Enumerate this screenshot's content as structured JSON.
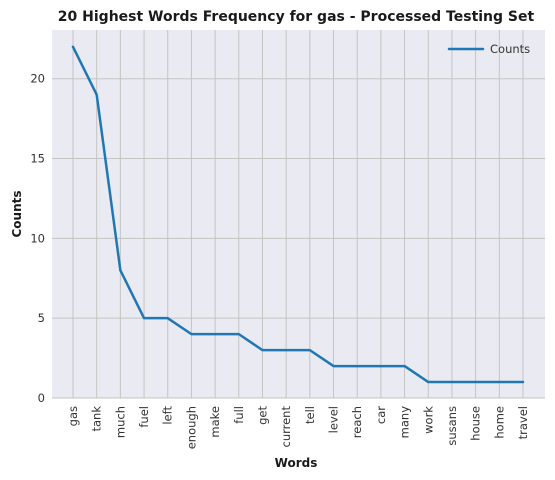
{
  "chart_data": {
    "type": "line",
    "title": "20 Highest Words Frequency for gas - Processed Testing Set",
    "xlabel": "Words",
    "ylabel": "Counts",
    "categories": [
      "gas",
      "tank",
      "much",
      "fuel",
      "left",
      "enough",
      "make",
      "full",
      "get",
      "current",
      "tell",
      "level",
      "reach",
      "car",
      "many",
      "work",
      "susans",
      "house",
      "home",
      "travel"
    ],
    "series": [
      {
        "name": "Counts",
        "values": [
          22,
          19,
          8,
          5,
          5,
          4,
          4,
          4,
          3,
          3,
          3,
          2,
          2,
          2,
          2,
          1,
          1,
          1,
          1,
          1
        ]
      }
    ],
    "ylim": [
      0,
      23.05
    ],
    "yticks": [
      0,
      5,
      10,
      15,
      20
    ],
    "grid": true,
    "legend_position": "top-right",
    "colors": {
      "series": "#1f77b4",
      "plot_background": "#eaeaf2",
      "grid": "#c4c4c4"
    }
  }
}
